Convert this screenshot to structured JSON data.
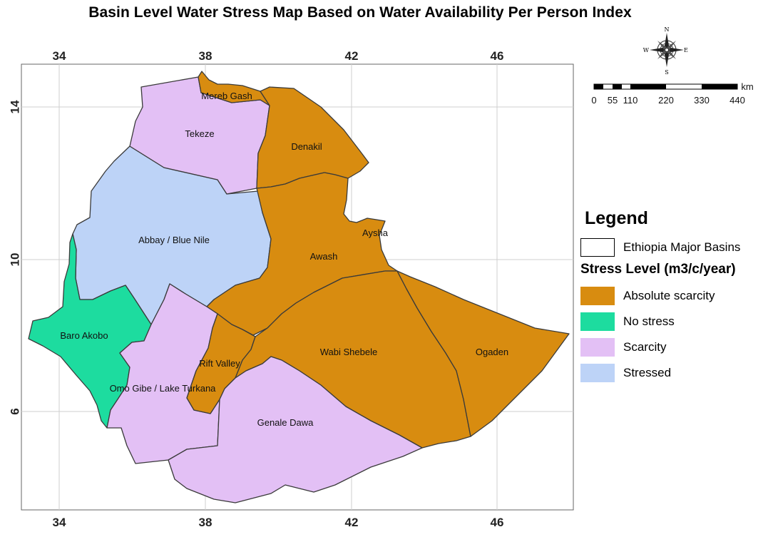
{
  "title": "Basin Level Water Stress Map Based on Water Availability Per Person Index",
  "axes": {
    "x_ticks": [
      "34",
      "38",
      "42",
      "46"
    ],
    "y_ticks": [
      "14",
      "10",
      "6"
    ]
  },
  "compass": {
    "n": "N",
    "e": "E",
    "s": "S",
    "w": "W"
  },
  "scale_bar": {
    "unit": "km",
    "labels": [
      "0",
      "55",
      "110",
      "220",
      "330",
      "440"
    ]
  },
  "basins": [
    {
      "name": "Mereb Gash",
      "class": "absolute"
    },
    {
      "name": "Tekeze",
      "class": "scarcity"
    },
    {
      "name": "Denakil",
      "class": "absolute"
    },
    {
      "name": "Abbay / Blue Nile",
      "class": "stressed"
    },
    {
      "name": "Aysha",
      "class": "absolute"
    },
    {
      "name": "Awash",
      "class": "absolute"
    },
    {
      "name": "Baro Akobo",
      "class": "nostress"
    },
    {
      "name": "Rift Valley",
      "class": "absolute"
    },
    {
      "name": "Wabi Shebele",
      "class": "absolute"
    },
    {
      "name": "Ogaden",
      "class": "absolute"
    },
    {
      "name": "Omo Gibe / Lake Turkana",
      "class": "scarcity"
    },
    {
      "name": "Genale Dawa",
      "class": "scarcity"
    }
  ],
  "legend": {
    "title": "Legend",
    "outline_label": "Ethiopia Major Basins",
    "stress_heading": "Stress Level (m3/c/year)",
    "items": [
      {
        "label": "Absolute scarcity",
        "color": "#d88c10"
      },
      {
        "label": "No stress",
        "color": "#1ddc9f"
      },
      {
        "label": "Scarcity",
        "color": "#e3c0f5"
      },
      {
        "label": "Stressed",
        "color": "#bdd3f7"
      }
    ]
  },
  "colors": {
    "absolute": "#d88c10",
    "nostress": "#1ddc9f",
    "scarcity": "#e3c0f5",
    "stressed": "#bdd3f7"
  }
}
